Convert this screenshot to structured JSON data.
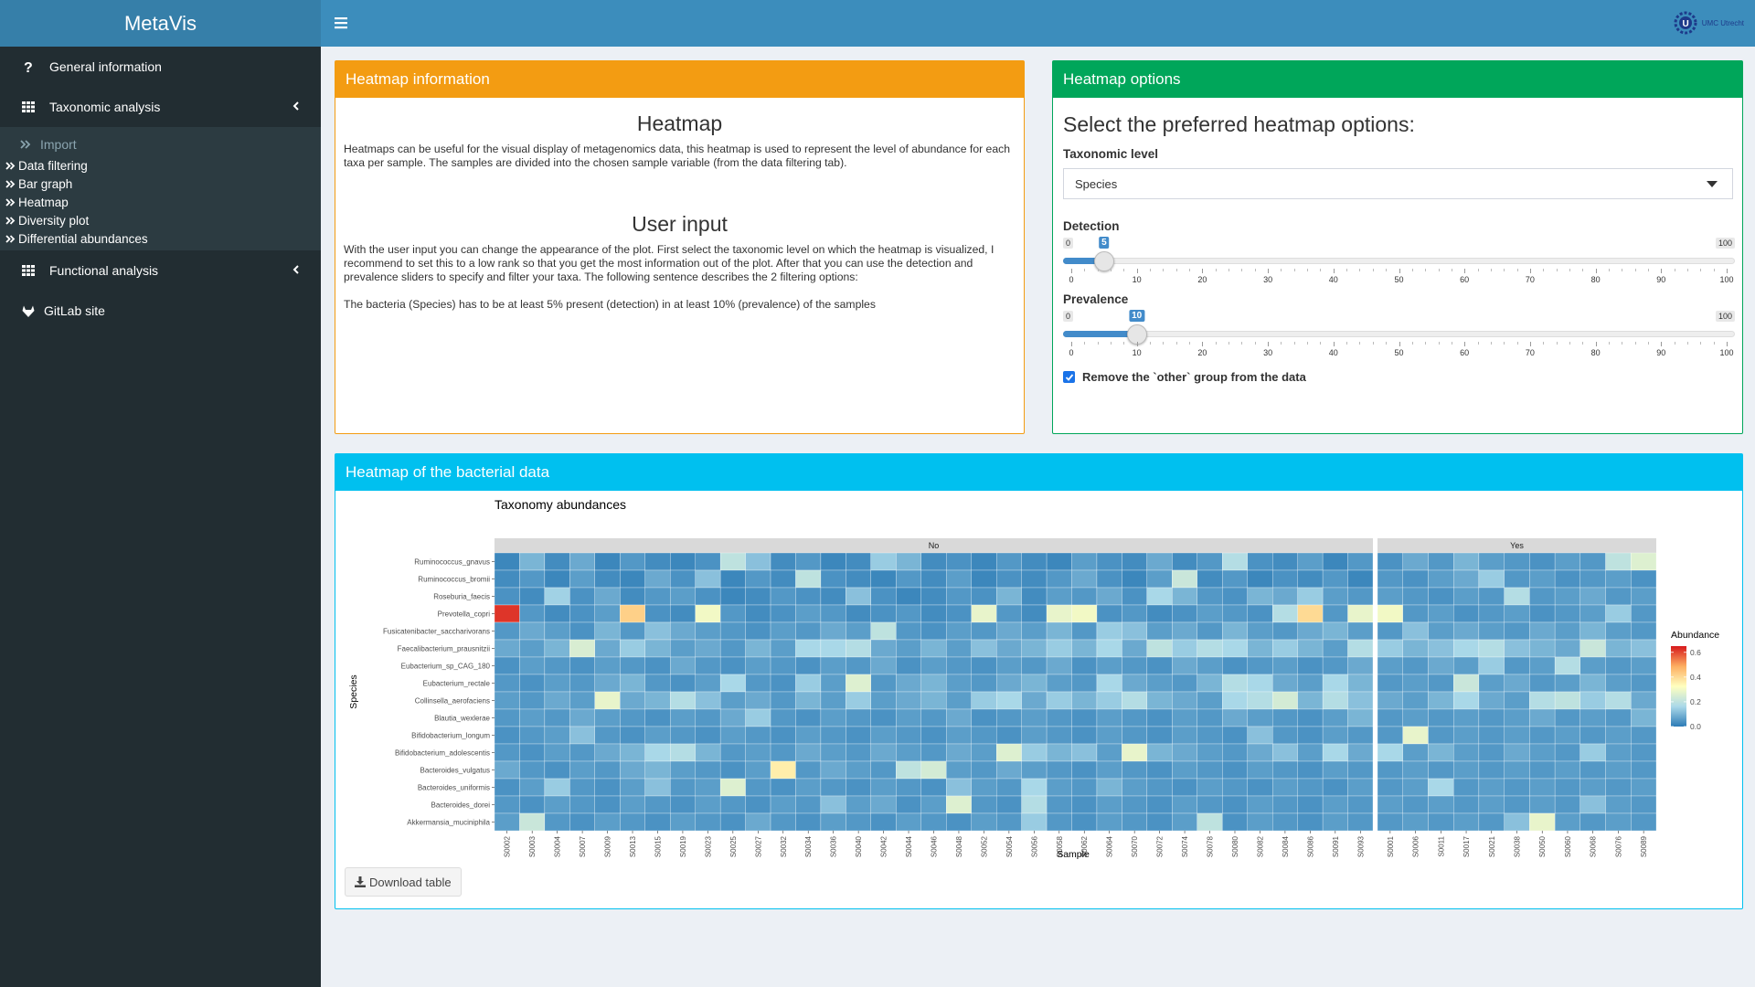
{
  "app": {
    "title": "MetaVis"
  },
  "sidebar": {
    "general": "General information",
    "taxonomic": "Taxonomic analysis",
    "import": "Import",
    "sub_items": [
      "Data filtering",
      "Bar graph",
      "Heatmap",
      "Diversity plot",
      "Differential abundances"
    ],
    "functional": "Functional analysis",
    "gitlab": "GitLab site"
  },
  "header": {
    "logo_text": "UMC Utrecht"
  },
  "info_box": {
    "title": "Heatmap information",
    "heading1": "Heatmap",
    "para1": "Heatmaps can be useful for the visual display of metagenomics data, this heatmap is used to represent the level of abundance for each taxa per sample. The samples are divided into the chosen sample variable (from the data filtering tab).",
    "heading2": "User input",
    "para2": "With the user input you can change the appearance of the plot. First select the taxonomic level on which the heatmap is visualized, I recommend to set this to a low rank so that you get the most information out of the plot. After that you can use the detection and prevalence sliders to specify and filter your taxa. The following sentence describes the 2 filtering options:",
    "para3": "The bacteria (Species) has to be at least 5% present (detection) in at least 10% (prevalence) of the samples"
  },
  "options_box": {
    "title": "Heatmap options",
    "subtitle": "Select the preferred heatmap options:",
    "taxonomic_label": "Taxonomic level",
    "taxonomic_value": "Species",
    "detection": {
      "label": "Detection",
      "min": 0,
      "max": 100,
      "value": 5
    },
    "prevalence": {
      "label": "Prevalence",
      "min": 0,
      "max": 100,
      "value": 10
    },
    "slider_ticks": [
      "0",
      "10",
      "20",
      "30",
      "40",
      "50",
      "60",
      "70",
      "80",
      "90",
      "100"
    ],
    "slider_min_label": "0",
    "slider_max_label": "100",
    "checkbox_label": "Remove the `other` group from the data",
    "checkbox_checked": true
  },
  "heatmap_box": {
    "title": "Heatmap of the bacterial data",
    "download_label": "Download table"
  },
  "chart_data": {
    "type": "heatmap",
    "title": "Taxonomy abundances",
    "xlabel": "Sample",
    "ylabel": "Species",
    "legend_title": "Abundance",
    "legend_ticks": [
      "0.6",
      "0.4",
      "0.2",
      "0.0"
    ],
    "legend_range": [
      0,
      0.65
    ],
    "colors": [
      "#2c7bb6",
      "#abd9e9",
      "#ffffbf",
      "#fdae61",
      "#d7191c"
    ],
    "species": [
      "Ruminococcus_gnavus",
      "Ruminococcus_bromii",
      "Roseburia_faecis",
      "Prevotella_copri",
      "Fusicatenibacter_saccharivorans",
      "Faecalibacterium_prausnitzii",
      "Eubacterium_sp_CAG_180",
      "Eubacterium_rectale",
      "Collinsella_aerofaciens",
      "Blautia_wexlerae",
      "Bifidobacterium_longum",
      "Bifidobacterium_adolescentis",
      "Bacteroides_vulgatus",
      "Bacteroides_uniformis",
      "Bacteroides_dorei",
      "Akkermansia_muciniphila"
    ],
    "panels": [
      {
        "name": "No",
        "samples": [
          "S0002",
          "S0003",
          "S0004",
          "S0007",
          "S0009",
          "S0013",
          "S0015",
          "S0019",
          "S0023",
          "S0025",
          "S0027",
          "S0032",
          "S0034",
          "S0036",
          "S0040",
          "S0042",
          "S0044",
          "S0046",
          "S0048",
          "S0052",
          "S0054",
          "S0056",
          "S0058",
          "S0062",
          "S0064",
          "S0070",
          "S0072",
          "S0074",
          "S0078",
          "S0080",
          "S0082",
          "S0084",
          "S0086",
          "S0091",
          "S0093"
        ],
        "values": [
          [
            0.02,
            0.1,
            0.03,
            0.08,
            0.02,
            0.05,
            0.03,
            0.02,
            0.04,
            0.2,
            0.12,
            0.03,
            0.05,
            0.02,
            0.03,
            0.14,
            0.1,
            0.03,
            0.04,
            0.02,
            0.05,
            0.03,
            0.02,
            0.06,
            0.04,
            0.03,
            0.08,
            0.03,
            0.05,
            0.18,
            0.04,
            0.03,
            0.06,
            0.02,
            0.05
          ],
          [
            0.03,
            0.05,
            0.02,
            0.06,
            0.03,
            0.02,
            0.08,
            0.04,
            0.12,
            0.02,
            0.05,
            0.03,
            0.2,
            0.04,
            0.03,
            0.02,
            0.05,
            0.03,
            0.06,
            0.02,
            0.04,
            0.03,
            0.05,
            0.08,
            0.04,
            0.02,
            0.06,
            0.22,
            0.03,
            0.05,
            0.02,
            0.04,
            0.03,
            0.05,
            0.02
          ],
          [
            0.04,
            0.03,
            0.15,
            0.04,
            0.08,
            0.03,
            0.05,
            0.06,
            0.04,
            0.02,
            0.03,
            0.05,
            0.04,
            0.03,
            0.12,
            0.04,
            0.02,
            0.03,
            0.05,
            0.04,
            0.1,
            0.03,
            0.06,
            0.05,
            0.08,
            0.04,
            0.16,
            0.1,
            0.05,
            0.04,
            0.1,
            0.08,
            0.14,
            0.06,
            0.05
          ],
          [
            0.62,
            0.05,
            0.03,
            0.04,
            0.06,
            0.42,
            0.04,
            0.03,
            0.3,
            0.05,
            0.03,
            0.04,
            0.06,
            0.05,
            0.03,
            0.04,
            0.05,
            0.03,
            0.04,
            0.28,
            0.05,
            0.03,
            0.28,
            0.3,
            0.04,
            0.05,
            0.03,
            0.04,
            0.06,
            0.05,
            0.04,
            0.18,
            0.4,
            0.05,
            0.28
          ],
          [
            0.05,
            0.08,
            0.06,
            0.04,
            0.1,
            0.05,
            0.12,
            0.08,
            0.06,
            0.05,
            0.04,
            0.06,
            0.05,
            0.08,
            0.06,
            0.2,
            0.05,
            0.04,
            0.06,
            0.05,
            0.08,
            0.06,
            0.1,
            0.05,
            0.14,
            0.12,
            0.06,
            0.08,
            0.05,
            0.1,
            0.06,
            0.05,
            0.08,
            0.1,
            0.06
          ],
          [
            0.08,
            0.06,
            0.1,
            0.25,
            0.08,
            0.14,
            0.1,
            0.06,
            0.08,
            0.05,
            0.1,
            0.06,
            0.16,
            0.16,
            0.18,
            0.08,
            0.06,
            0.1,
            0.06,
            0.12,
            0.08,
            0.1,
            0.14,
            0.1,
            0.16,
            0.08,
            0.2,
            0.14,
            0.18,
            0.16,
            0.1,
            0.14,
            0.1,
            0.06,
            0.18
          ],
          [
            0.04,
            0.06,
            0.05,
            0.04,
            0.06,
            0.05,
            0.04,
            0.08,
            0.05,
            0.04,
            0.06,
            0.05,
            0.04,
            0.06,
            0.05,
            0.08,
            0.04,
            0.06,
            0.05,
            0.04,
            0.06,
            0.05,
            0.08,
            0.04,
            0.06,
            0.05,
            0.04,
            0.08,
            0.06,
            0.04,
            0.05,
            0.06,
            0.04,
            0.05,
            0.08
          ],
          [
            0.05,
            0.04,
            0.06,
            0.05,
            0.08,
            0.1,
            0.05,
            0.04,
            0.06,
            0.16,
            0.05,
            0.04,
            0.14,
            0.06,
            0.26,
            0.05,
            0.08,
            0.1,
            0.06,
            0.05,
            0.08,
            0.1,
            0.06,
            0.05,
            0.16,
            0.08,
            0.06,
            0.05,
            0.1,
            0.18,
            0.16,
            0.08,
            0.06,
            0.16,
            0.1
          ],
          [
            0.06,
            0.05,
            0.08,
            0.06,
            0.28,
            0.08,
            0.1,
            0.18,
            0.12,
            0.06,
            0.08,
            0.05,
            0.1,
            0.06,
            0.14,
            0.06,
            0.08,
            0.1,
            0.06,
            0.14,
            0.16,
            0.08,
            0.14,
            0.1,
            0.14,
            0.18,
            0.1,
            0.08,
            0.06,
            0.16,
            0.18,
            0.24,
            0.1,
            0.18,
            0.12
          ],
          [
            0.05,
            0.06,
            0.05,
            0.08,
            0.06,
            0.05,
            0.04,
            0.06,
            0.05,
            0.08,
            0.14,
            0.05,
            0.04,
            0.06,
            0.05,
            0.04,
            0.06,
            0.05,
            0.08,
            0.04,
            0.05,
            0.06,
            0.05,
            0.04,
            0.06,
            0.05,
            0.04,
            0.06,
            0.05,
            0.08,
            0.06,
            0.05,
            0.04,
            0.06,
            0.1
          ],
          [
            0.04,
            0.05,
            0.06,
            0.12,
            0.05,
            0.04,
            0.06,
            0.05,
            0.04,
            0.06,
            0.05,
            0.04,
            0.06,
            0.05,
            0.04,
            0.06,
            0.05,
            0.04,
            0.06,
            0.05,
            0.04,
            0.06,
            0.05,
            0.04,
            0.06,
            0.05,
            0.04,
            0.06,
            0.05,
            0.04,
            0.12,
            0.05,
            0.04,
            0.06,
            0.05
          ],
          [
            0.05,
            0.04,
            0.06,
            0.05,
            0.08,
            0.1,
            0.16,
            0.18,
            0.1,
            0.05,
            0.06,
            0.05,
            0.08,
            0.06,
            0.05,
            0.08,
            0.06,
            0.05,
            0.08,
            0.06,
            0.26,
            0.14,
            0.1,
            0.12,
            0.06,
            0.28,
            0.1,
            0.08,
            0.06,
            0.05,
            0.08,
            0.12,
            0.06,
            0.16,
            0.08
          ],
          [
            0.08,
            0.05,
            0.04,
            0.06,
            0.05,
            0.08,
            0.1,
            0.06,
            0.05,
            0.04,
            0.06,
            0.36,
            0.05,
            0.08,
            0.06,
            0.05,
            0.2,
            0.24,
            0.06,
            0.05,
            0.08,
            0.06,
            0.05,
            0.04,
            0.06,
            0.05,
            0.04,
            0.06,
            0.05,
            0.04,
            0.06,
            0.05,
            0.04,
            0.06,
            0.05
          ],
          [
            0.04,
            0.06,
            0.14,
            0.05,
            0.04,
            0.06,
            0.12,
            0.05,
            0.06,
            0.26,
            0.05,
            0.04,
            0.06,
            0.05,
            0.04,
            0.06,
            0.05,
            0.04,
            0.12,
            0.06,
            0.05,
            0.16,
            0.06,
            0.05,
            0.1,
            0.06,
            0.05,
            0.04,
            0.06,
            0.05,
            0.04,
            0.06,
            0.05,
            0.04,
            0.06
          ],
          [
            0.05,
            0.04,
            0.06,
            0.05,
            0.04,
            0.06,
            0.05,
            0.04,
            0.06,
            0.05,
            0.04,
            0.06,
            0.05,
            0.12,
            0.06,
            0.08,
            0.04,
            0.06,
            0.26,
            0.05,
            0.04,
            0.18,
            0.05,
            0.04,
            0.06,
            0.05,
            0.04,
            0.06,
            0.05,
            0.04,
            0.06,
            0.05,
            0.04,
            0.06,
            0.05
          ],
          [
            0.06,
            0.22,
            0.05,
            0.04,
            0.06,
            0.05,
            0.04,
            0.06,
            0.05,
            0.04,
            0.08,
            0.05,
            0.04,
            0.06,
            0.05,
            0.04,
            0.06,
            0.05,
            0.04,
            0.06,
            0.05,
            0.14,
            0.05,
            0.04,
            0.06,
            0.05,
            0.04,
            0.06,
            0.2,
            0.04,
            0.06,
            0.05,
            0.04,
            0.06,
            0.05
          ]
        ]
      },
      {
        "name": "Yes",
        "samples": [
          "S0001",
          "S0006",
          "S0011",
          "S0017",
          "S0021",
          "S0038",
          "S0050",
          "S0060",
          "S0068",
          "S0076",
          "S0089"
        ],
        "values": [
          [
            0.04,
            0.08,
            0.05,
            0.1,
            0.06,
            0.05,
            0.04,
            0.06,
            0.05,
            0.2,
            0.26
          ],
          [
            0.05,
            0.04,
            0.06,
            0.08,
            0.14,
            0.05,
            0.06,
            0.04,
            0.05,
            0.06,
            0.04
          ],
          [
            0.06,
            0.05,
            0.04,
            0.06,
            0.05,
            0.18,
            0.05,
            0.06,
            0.08,
            0.05,
            0.06
          ],
          [
            0.3,
            0.05,
            0.06,
            0.04,
            0.05,
            0.06,
            0.04,
            0.05,
            0.06,
            0.14,
            0.05
          ],
          [
            0.05,
            0.12,
            0.06,
            0.08,
            0.06,
            0.05,
            0.08,
            0.06,
            0.1,
            0.06,
            0.05
          ],
          [
            0.14,
            0.1,
            0.12,
            0.16,
            0.18,
            0.12,
            0.1,
            0.08,
            0.22,
            0.1,
            0.12
          ],
          [
            0.06,
            0.05,
            0.08,
            0.06,
            0.14,
            0.05,
            0.06,
            0.18,
            0.06,
            0.05,
            0.06
          ],
          [
            0.05,
            0.06,
            0.05,
            0.22,
            0.06,
            0.08,
            0.05,
            0.06,
            0.1,
            0.06,
            0.05
          ],
          [
            0.08,
            0.06,
            0.1,
            0.16,
            0.08,
            0.06,
            0.18,
            0.2,
            0.14,
            0.18,
            0.08
          ],
          [
            0.05,
            0.06,
            0.05,
            0.06,
            0.05,
            0.06,
            0.08,
            0.05,
            0.06,
            0.05,
            0.1
          ],
          [
            0.05,
            0.28,
            0.05,
            0.06,
            0.05,
            0.06,
            0.05,
            0.06,
            0.05,
            0.06,
            0.05
          ],
          [
            0.16,
            0.06,
            0.1,
            0.06,
            0.05,
            0.08,
            0.06,
            0.05,
            0.14,
            0.06,
            0.05
          ],
          [
            0.05,
            0.06,
            0.05,
            0.06,
            0.05,
            0.06,
            0.05,
            0.06,
            0.05,
            0.06,
            0.05
          ],
          [
            0.05,
            0.06,
            0.16,
            0.05,
            0.06,
            0.05,
            0.06,
            0.05,
            0.06,
            0.05,
            0.06
          ],
          [
            0.06,
            0.05,
            0.06,
            0.05,
            0.06,
            0.05,
            0.06,
            0.05,
            0.12,
            0.06,
            0.05
          ],
          [
            0.05,
            0.06,
            0.05,
            0.06,
            0.05,
            0.12,
            0.28,
            0.06,
            0.05,
            0.06,
            0.05
          ]
        ]
      }
    ]
  }
}
